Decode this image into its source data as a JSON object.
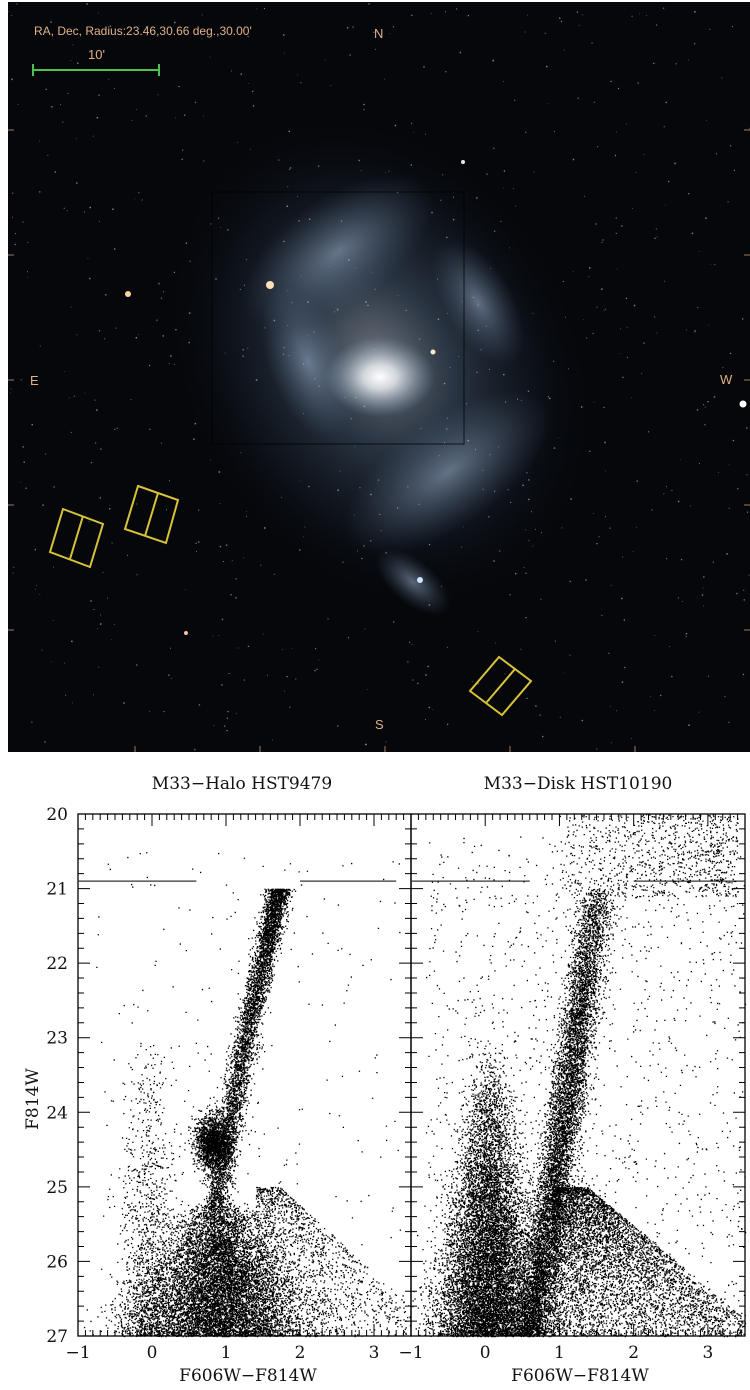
{
  "sky_image": {
    "radius_label": "RA, Dec, Radius:23.46,30.66 deg.,30.00'",
    "scale_label": "10'",
    "compass": {
      "north": "N",
      "south": "S",
      "east": "E",
      "west": "W"
    },
    "colors": {
      "background": "#05070b",
      "label": "#e0b088",
      "scale_bar": "#4fc04f",
      "footprint": "#d8c238",
      "galaxy_core": "#f2f4f6",
      "galaxy_arm": "#6c86a6"
    }
  },
  "chart_data": [
    {
      "type": "scatter",
      "title": "M33−Halo HST9479",
      "xlabel": "F606W−F814W",
      "ylabel": "F814W",
      "xlim": [
        -1,
        3.5
      ],
      "ylim": [
        27,
        20
      ],
      "y_inverted": true,
      "xticks": [
        -1,
        0,
        1,
        2,
        3
      ],
      "yticks": [
        20,
        21,
        22,
        23,
        24,
        25,
        26,
        27
      ],
      "grid": false,
      "reference_lines": [
        {
          "y": 20.9,
          "x_from": -1,
          "x_to": 0.6
        },
        {
          "y": 20.9,
          "x_from": 2.0,
          "x_to": 3.3
        }
      ],
      "features": [
        {
          "name": "red giant branch",
          "color_range": [
            0.7,
            1.4
          ],
          "mag_range": [
            21.0,
            26.5
          ]
        },
        {
          "name": "red clump",
          "x": 0.8,
          "y": 24.4
        },
        {
          "name": "blue plume",
          "color_range": [
            -0.3,
            0.3
          ],
          "mag_range": [
            23.0,
            27.0
          ]
        }
      ]
    },
    {
      "type": "scatter",
      "title": "M33−Disk HST10190",
      "xlabel": "F606W−F814W",
      "ylabel": "",
      "xlim": [
        -1,
        3.5
      ],
      "ylim": [
        27,
        20
      ],
      "y_inverted": true,
      "xticks": [
        -1,
        0,
        1,
        2,
        3
      ],
      "yticks": [
        20,
        21,
        22,
        23,
        24,
        25,
        26,
        27
      ],
      "grid": false,
      "reference_lines": [
        {
          "y": 20.9,
          "x_from": -1,
          "x_to": 0.6
        },
        {
          "y": 20.9,
          "x_from": 2.0,
          "x_to": 3.5
        }
      ],
      "features": [
        {
          "name": "blue main sequence",
          "color_range": [
            -0.2,
            0.4
          ],
          "mag_range": [
            23.0,
            27.0
          ]
        },
        {
          "name": "red giant branch",
          "color_range": [
            0.6,
            1.5
          ],
          "mag_range": [
            21.0,
            27.0
          ]
        },
        {
          "name": "bright red supergiants",
          "color_range": [
            1.0,
            3.0
          ],
          "mag_range": [
            20.0,
            21.0
          ]
        }
      ]
    }
  ]
}
